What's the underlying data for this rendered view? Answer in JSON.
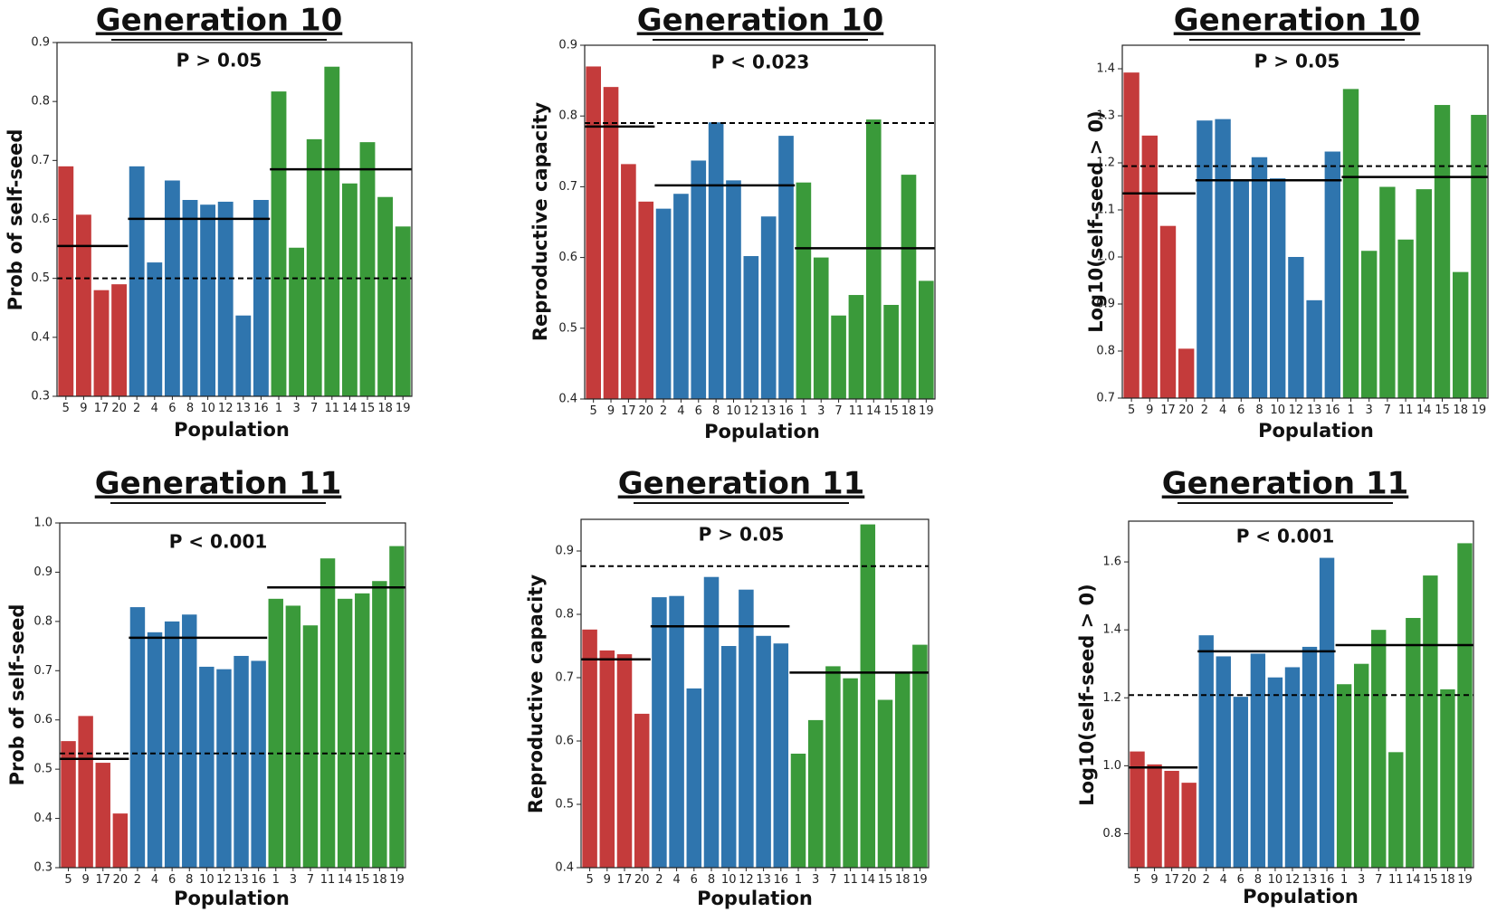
{
  "colors": {
    "red": "#c43b3b",
    "blue": "#2f75ae",
    "green": "#3a9a3a",
    "line": "#000000"
  },
  "chart_data": [
    {
      "type": "bar",
      "title": "Generation 10",
      "pvalue": "P > 0.05",
      "xlabel": "Population",
      "ylabel": "Prob of self-seed",
      "ylim": [
        0.3,
        0.9
      ],
      "yticks": [
        "0.3",
        "0.4",
        "0.5",
        "0.6",
        "0.7",
        "0.8",
        "0.9"
      ],
      "categories": [
        "5",
        "9",
        "17",
        "20",
        "2",
        "4",
        "6",
        "8",
        "10",
        "12",
        "13",
        "16",
        "1",
        "3",
        "7",
        "11",
        "14",
        "15",
        "18",
        "19"
      ],
      "values": [
        0.69,
        0.608,
        0.48,
        0.49,
        0.69,
        0.527,
        0.666,
        0.633,
        0.625,
        0.63,
        0.437,
        0.633,
        0.817,
        0.552,
        0.736,
        0.859,
        0.661,
        0.731,
        0.638,
        0.588
      ],
      "groups": [
        "red",
        "red",
        "red",
        "red",
        "blue",
        "blue",
        "blue",
        "blue",
        "blue",
        "blue",
        "blue",
        "blue",
        "green",
        "green",
        "green",
        "green",
        "green",
        "green",
        "green",
        "green"
      ],
      "group_means": [
        0.555,
        0.601,
        0.685
      ],
      "reference_line": 0.5
    },
    {
      "type": "bar",
      "title": "Generation 10",
      "pvalue": "P < 0.023",
      "xlabel": "Population",
      "ylabel": "Reproductive capacity",
      "ylim": [
        0.4,
        0.9
      ],
      "yticks": [
        "0.4",
        "0.5",
        "0.6",
        "0.7",
        "0.8",
        "0.9"
      ],
      "categories": [
        "5",
        "9",
        "17",
        "20",
        "2",
        "4",
        "6",
        "8",
        "10",
        "12",
        "13",
        "16",
        "1",
        "3",
        "7",
        "11",
        "14",
        "15",
        "18",
        "19"
      ],
      "values": [
        0.87,
        0.841,
        0.732,
        0.679,
        0.669,
        0.69,
        0.737,
        0.791,
        0.709,
        0.602,
        0.658,
        0.772,
        0.706,
        0.6,
        0.518,
        0.547,
        0.795,
        0.533,
        0.717,
        0.567
      ],
      "groups": [
        "red",
        "red",
        "red",
        "red",
        "blue",
        "blue",
        "blue",
        "blue",
        "blue",
        "blue",
        "blue",
        "blue",
        "green",
        "green",
        "green",
        "green",
        "green",
        "green",
        "green",
        "green"
      ],
      "group_means": [
        0.785,
        0.702,
        0.613
      ],
      "reference_line": 0.79
    },
    {
      "type": "bar",
      "title": "Generation 10",
      "pvalue": "P > 0.05",
      "xlabel": "Population",
      "ylabel": "Log10(self-seed > 0)",
      "ylim": [
        0.7,
        1.45
      ],
      "yticks": [
        "0.7",
        "0.8",
        "0.9",
        "1.0",
        "1.1",
        "1.2",
        "1.3",
        "1.4"
      ],
      "categories": [
        "5",
        "9",
        "17",
        "20",
        "2",
        "4",
        "6",
        "8",
        "10",
        "12",
        "13",
        "16",
        "1",
        "3",
        "7",
        "11",
        "14",
        "15",
        "18",
        "19"
      ],
      "values": [
        1.392,
        1.258,
        1.066,
        0.805,
        1.29,
        1.293,
        1.163,
        1.212,
        1.167,
        1.0,
        0.908,
        1.224,
        1.357,
        1.013,
        1.149,
        1.037,
        1.144,
        1.323,
        0.968,
        1.302
      ],
      "groups": [
        "red",
        "red",
        "red",
        "red",
        "blue",
        "blue",
        "blue",
        "blue",
        "blue",
        "blue",
        "blue",
        "blue",
        "green",
        "green",
        "green",
        "green",
        "green",
        "green",
        "green",
        "green"
      ],
      "group_means": [
        1.135,
        1.163,
        1.17
      ],
      "reference_line": 1.193
    },
    {
      "type": "bar",
      "title": "Generation 11",
      "pvalue": "P < 0.001",
      "xlabel": "Population",
      "ylabel": "Prob of self-seed",
      "ylim": [
        0.3,
        1.0
      ],
      "yticks": [
        "0.3",
        "0.4",
        "0.5",
        "0.6",
        "0.7",
        "0.8",
        "0.9",
        "1.0"
      ],
      "categories": [
        "5",
        "9",
        "17",
        "20",
        "2",
        "4",
        "6",
        "8",
        "10",
        "12",
        "13",
        "16",
        "1",
        "3",
        "7",
        "11",
        "14",
        "15",
        "18",
        "19"
      ],
      "values": [
        0.557,
        0.608,
        0.513,
        0.41,
        0.829,
        0.778,
        0.8,
        0.814,
        0.708,
        0.703,
        0.73,
        0.72,
        0.846,
        0.832,
        0.792,
        0.928,
        0.846,
        0.857,
        0.882,
        0.953
      ],
      "groups": [
        "red",
        "red",
        "red",
        "red",
        "blue",
        "blue",
        "blue",
        "blue",
        "blue",
        "blue",
        "blue",
        "blue",
        "green",
        "green",
        "green",
        "green",
        "green",
        "green",
        "green",
        "green"
      ],
      "group_means": [
        0.521,
        0.767,
        0.869
      ],
      "reference_line": 0.532
    },
    {
      "type": "bar",
      "title": "Generation 11",
      "pvalue": "P > 0.05",
      "xlabel": "Population",
      "ylabel": "Reproductive capacity",
      "ylim": [
        0.4,
        0.95
      ],
      "yticks": [
        "0.4",
        "0.5",
        "0.6",
        "0.7",
        "0.8",
        "0.9"
      ],
      "categories": [
        "5",
        "9",
        "17",
        "20",
        "2",
        "4",
        "6",
        "8",
        "10",
        "12",
        "13",
        "16",
        "1",
        "3",
        "7",
        "11",
        "14",
        "15",
        "18",
        "19"
      ],
      "values": [
        0.776,
        0.743,
        0.737,
        0.643,
        0.827,
        0.829,
        0.683,
        0.859,
        0.75,
        0.839,
        0.766,
        0.754,
        0.58,
        0.633,
        0.718,
        0.699,
        0.942,
        0.665,
        0.707,
        0.752
      ],
      "groups": [
        "red",
        "red",
        "red",
        "red",
        "blue",
        "blue",
        "blue",
        "blue",
        "blue",
        "blue",
        "blue",
        "blue",
        "green",
        "green",
        "green",
        "green",
        "green",
        "green",
        "green",
        "green"
      ],
      "group_means": [
        0.729,
        0.781,
        0.708
      ],
      "reference_line": 0.876
    },
    {
      "type": "bar",
      "title": "Generation 11",
      "pvalue": "P < 0.001",
      "xlabel": "Population",
      "ylabel": "Log10(self-seed > 0)",
      "ylim": [
        0.7,
        1.72
      ],
      "yticks": [
        "0.8",
        "1.0",
        "1.2",
        "1.4",
        "1.6"
      ],
      "categories": [
        "5",
        "9",
        "17",
        "20",
        "2",
        "4",
        "6",
        "8",
        "10",
        "12",
        "13",
        "16",
        "1",
        "3",
        "7",
        "11",
        "14",
        "15",
        "18",
        "19"
      ],
      "values": [
        1.042,
        1.004,
        0.985,
        0.95,
        1.384,
        1.322,
        1.203,
        1.33,
        1.26,
        1.29,
        1.35,
        1.612,
        1.24,
        1.3,
        1.4,
        1.04,
        1.435,
        1.56,
        1.225,
        1.655
      ],
      "groups": [
        "red",
        "red",
        "red",
        "red",
        "blue",
        "blue",
        "blue",
        "blue",
        "blue",
        "blue",
        "blue",
        "blue",
        "green",
        "green",
        "green",
        "green",
        "green",
        "green",
        "green",
        "green"
      ],
      "group_means": [
        0.995,
        1.337,
        1.355
      ],
      "reference_line": 1.208
    }
  ]
}
